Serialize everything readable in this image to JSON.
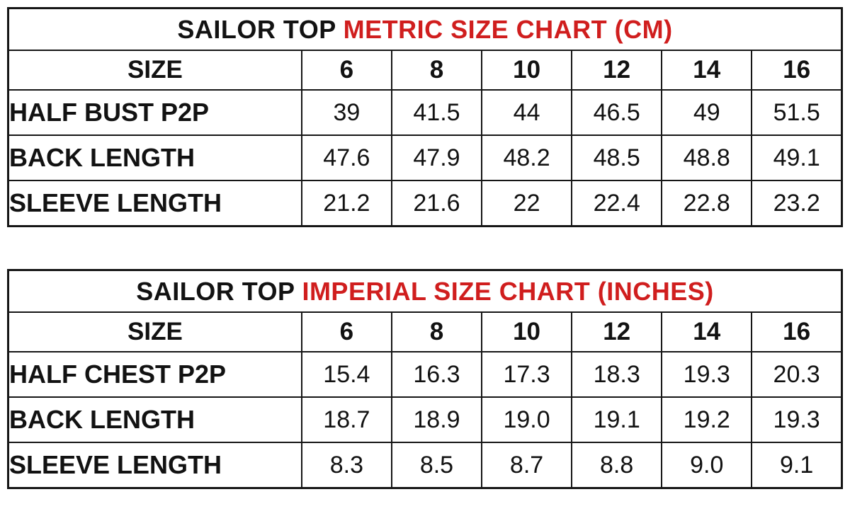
{
  "page": {
    "background_color": "#ffffff",
    "text_color": "#121212",
    "accent_red": "#d01e1e"
  },
  "tables": [
    {
      "title_black": "SAILOR TOP",
      "title_red": "METRIC SIZE CHART (CM)",
      "header_label": "SIZE",
      "sizes": [
        "6",
        "8",
        "10",
        "12",
        "14",
        "16"
      ],
      "rows": [
        {
          "label": "HALF BUST P2P",
          "values": [
            "39",
            "41.5",
            "44",
            "46.5",
            "49",
            "51.5"
          ]
        },
        {
          "label": "BACK LENGTH",
          "values": [
            "47.6",
            "47.9",
            "48.2",
            "48.5",
            "48.8",
            "49.1"
          ]
        },
        {
          "label": "SLEEVE LENGTH",
          "values": [
            "21.2",
            "21.6",
            "22",
            "22.4",
            "22.8",
            "23.2"
          ]
        }
      ]
    },
    {
      "title_black": "SAILOR TOP",
      "title_red": "IMPERIAL SIZE CHART (INCHES)",
      "header_label": "SIZE",
      "sizes": [
        "6",
        "8",
        "10",
        "12",
        "14",
        "16"
      ],
      "rows": [
        {
          "label": "HALF CHEST P2P",
          "values": [
            "15.4",
            "16.3",
            "17.3",
            "18.3",
            "19.3",
            "20.3"
          ]
        },
        {
          "label": "BACK LENGTH",
          "values": [
            "18.7",
            "18.9",
            "19.0",
            "19.1",
            "19.2",
            "19.3"
          ]
        },
        {
          "label": "SLEEVE LENGTH",
          "values": [
            "8.3",
            "8.5",
            "8.7",
            "8.8",
            "9.0",
            "9.1"
          ]
        }
      ]
    }
  ]
}
